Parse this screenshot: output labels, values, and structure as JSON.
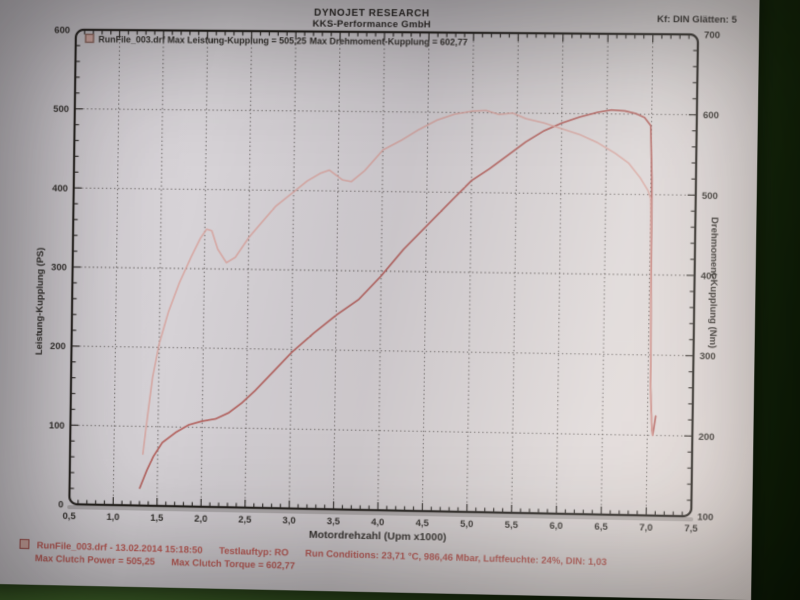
{
  "header": {
    "title": "DYNOJET RESEARCH",
    "subtitle": "KKS-Performance GmbH",
    "settings": "Kf: DIN  Glätten: 5"
  },
  "legend": {
    "power_entry": "RunFile_003.drf Max Leistung-Kupplung = 505,25",
    "torque_entry": "Max Drehmoment-Kupplung = 602,77"
  },
  "footer": {
    "run_file": "RunFile_003.drf - 13.02.2014 15:18:50",
    "test_type": "Testlauftyp: RO",
    "conditions": "Run Conditions: 23,71 °C, 986,46 Mbar, Luftfeuchte: 24%, DIN: 1,03",
    "max_power": "Max Clutch Power = 505,25",
    "max_torque": "Max Clutch Torque = 602,77"
  },
  "chart_data": {
    "type": "line",
    "xlabel": "Motordrehzahl (Upm x1000)",
    "ylabel_left": "Leistung-Kupplung (PS)",
    "ylabel_right": "Drehmoment-Kupplung (Nm)",
    "xlim": [
      0.5,
      7.5
    ],
    "ylim_left": [
      0,
      600
    ],
    "ylim_right": [
      100,
      700
    ],
    "grid": "dotted",
    "legend_position": "top-left-inside",
    "x_ticks": {
      "values": [
        0.5,
        1.0,
        1.5,
        2.0,
        2.5,
        3.0,
        3.5,
        4.0,
        4.5,
        5.0,
        5.5,
        6.0,
        6.5,
        7.0,
        7.5
      ],
      "labels": [
        "0,5",
        "1,0",
        "1,5",
        "2,0",
        "2,5",
        "3,0",
        "3,5",
        "4,0",
        "4,5",
        "5,0",
        "5,5",
        "6,0",
        "6,5",
        "7,0",
        "7,5"
      ]
    },
    "y_ticks_left": {
      "values": [
        0,
        100,
        200,
        300,
        400,
        500,
        600
      ],
      "labels": [
        "0",
        "100",
        "200",
        "300",
        "400",
        "500",
        "600"
      ]
    },
    "y_ticks_right": {
      "values": [
        100,
        200,
        300,
        400,
        500,
        600,
        700
      ],
      "labels": [
        "100",
        "200",
        "300",
        "400",
        "500",
        "600",
        "700"
      ]
    },
    "colors": {
      "power_curve": "#b35f5b",
      "torque_curve": "#d7a09a",
      "grid": "#4a4542",
      "axis": "#26231f",
      "footer_text": "#bf5a54",
      "paper": "#d7d3d7"
    },
    "series": [
      {
        "name": "Leistung-Kupplung (PS)",
        "axis": "left",
        "max_value": "505,25",
        "points": [
          [
            1.3,
            22
          ],
          [
            1.38,
            45
          ],
          [
            1.45,
            62
          ],
          [
            1.55,
            80
          ],
          [
            1.7,
            93
          ],
          [
            1.85,
            103
          ],
          [
            2.0,
            108
          ],
          [
            2.15,
            111
          ],
          [
            2.3,
            119
          ],
          [
            2.45,
            132
          ],
          [
            2.6,
            148
          ],
          [
            2.8,
            172
          ],
          [
            3.0,
            196
          ],
          [
            3.25,
            221
          ],
          [
            3.5,
            244
          ],
          [
            3.75,
            264
          ],
          [
            4.0,
            294
          ],
          [
            4.25,
            328
          ],
          [
            4.55,
            363
          ],
          [
            4.8,
            392
          ],
          [
            5.0,
            415
          ],
          [
            5.2,
            430
          ],
          [
            5.4,
            447
          ],
          [
            5.6,
            464
          ],
          [
            5.8,
            478
          ],
          [
            6.0,
            488
          ],
          [
            6.2,
            496
          ],
          [
            6.4,
            502
          ],
          [
            6.55,
            505
          ],
          [
            6.7,
            504
          ],
          [
            6.82,
            501
          ],
          [
            6.92,
            496
          ],
          [
            6.99,
            486
          ],
          [
            7.01,
            420
          ],
          [
            7.02,
            280
          ],
          [
            7.03,
            160
          ],
          [
            7.05,
            106
          ],
          [
            7.06,
            100
          ],
          [
            7.09,
            124
          ]
        ]
      },
      {
        "name": "Drehmoment-Kupplung (Nm)",
        "axis": "right",
        "max_value": "602,77",
        "points": [
          [
            1.33,
            165
          ],
          [
            1.38,
            215
          ],
          [
            1.43,
            262
          ],
          [
            1.5,
            305
          ],
          [
            1.6,
            345
          ],
          [
            1.72,
            382
          ],
          [
            1.85,
            415
          ],
          [
            1.95,
            438
          ],
          [
            2.02,
            450
          ],
          [
            2.08,
            448
          ],
          [
            2.15,
            425
          ],
          [
            2.25,
            408
          ],
          [
            2.35,
            415
          ],
          [
            2.5,
            440
          ],
          [
            2.65,
            460
          ],
          [
            2.8,
            480
          ],
          [
            3.0,
            498
          ],
          [
            3.15,
            512
          ],
          [
            3.3,
            522
          ],
          [
            3.4,
            526
          ],
          [
            3.55,
            514
          ],
          [
            3.65,
            512
          ],
          [
            3.8,
            526
          ],
          [
            4.0,
            552
          ],
          [
            4.2,
            564
          ],
          [
            4.4,
            578
          ],
          [
            4.6,
            590
          ],
          [
            4.8,
            598
          ],
          [
            5.0,
            602
          ],
          [
            5.15,
            603
          ],
          [
            5.3,
            598
          ],
          [
            5.45,
            600
          ],
          [
            5.6,
            593
          ],
          [
            5.8,
            588
          ],
          [
            6.0,
            581
          ],
          [
            6.2,
            574
          ],
          [
            6.4,
            564
          ],
          [
            6.6,
            551
          ],
          [
            6.75,
            539
          ],
          [
            6.88,
            521
          ],
          [
            6.97,
            505
          ],
          [
            7.0,
            495
          ],
          [
            7.01,
            430
          ],
          [
            7.02,
            340
          ],
          [
            7.03,
            250
          ],
          [
            7.05,
            208
          ],
          [
            7.06,
            200
          ]
        ]
      }
    ]
  }
}
